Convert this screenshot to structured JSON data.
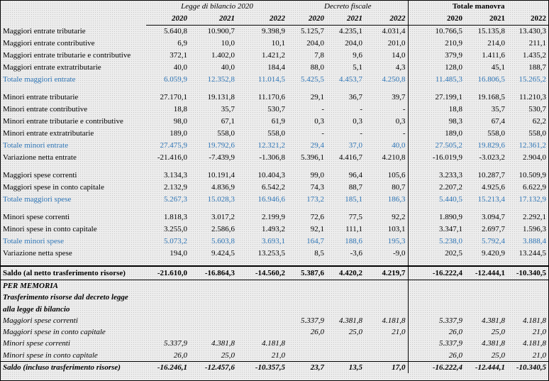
{
  "header": {
    "groups": [
      {
        "title": "Legge di bilancio 2020",
        "years": [
          2020,
          2021,
          2022
        ]
      },
      {
        "title": "Decreto fiscale",
        "years": [
          2020,
          2021,
          2022
        ]
      },
      {
        "title": "Totale manovra",
        "years": [
          2020,
          2021,
          2022
        ]
      }
    ]
  },
  "sections": [
    {
      "rows": [
        {
          "label": "Maggiori entrate tributarie",
          "values": [
            "5.640,8",
            "10.900,7",
            "9.398,9",
            "5.125,7",
            "4.235,1",
            "4.031,4",
            "10.766,5",
            "15.135,8",
            "13.430,3"
          ]
        },
        {
          "label": "Maggiori entrate contributive",
          "values": [
            "6,9",
            "10,0",
            "10,1",
            "204,0",
            "204,0",
            "201,0",
            "210,9",
            "214,0",
            "211,1"
          ]
        },
        {
          "label": "Maggiori entrate tributarie e contributive",
          "values": [
            "372,1",
            "1.402,0",
            "1.421,2",
            "7,8",
            "9,6",
            "14,0",
            "379,9",
            "1.411,6",
            "1.435,2"
          ]
        },
        {
          "label": "Maggiori entrate extratributarie",
          "values": [
            "40,0",
            "40,0",
            "184,4",
            "88,0",
            "5,1",
            "4,3",
            "128,0",
            "45,1",
            "188,7"
          ]
        },
        {
          "label": "Totale maggiori entrate",
          "color": "#2e75b6",
          "values": [
            "6.059,9",
            "12.352,8",
            "11.014,5",
            "5.425,5",
            "4.453,7",
            "4.250,8",
            "11.485,3",
            "16.806,5",
            "15.265,2"
          ]
        }
      ]
    },
    {
      "rows": [
        {
          "label": "Minori entrate tributarie",
          "values": [
            "27.170,1",
            "19.131,8",
            "11.170,6",
            "29,1",
            "36,7",
            "39,7",
            "27.199,1",
            "19.168,5",
            "11.210,3"
          ]
        },
        {
          "label": "Minori entrate contributive",
          "values": [
            "18,8",
            "35,7",
            "530,7",
            "-",
            "-",
            "-",
            "18,8",
            "35,7",
            "530,7"
          ]
        },
        {
          "label": "Minori entrate tributarie e contributive",
          "values": [
            "98,0",
            "67,1",
            "61,9",
            "0,3",
            "0,3",
            "0,3",
            "98,3",
            "67,4",
            "62,2"
          ]
        },
        {
          "label": "Minori entrate extratributarie",
          "values": [
            "189,0",
            "558,0",
            "558,0",
            "-",
            "-",
            "-",
            "189,0",
            "558,0",
            "558,0"
          ]
        },
        {
          "label": "Totale minori entrate",
          "color": "#2e75b6",
          "values": [
            "27.475,9",
            "19.792,6",
            "12.321,2",
            "29,4",
            "37,0",
            "40,0",
            "27.505,2",
            "19.829,6",
            "12.361,2"
          ]
        },
        {
          "label": "Variazione netta entrate",
          "values": [
            "-21.416,0",
            "-7.439,9",
            "-1.306,8",
            "5.396,1",
            "4.416,7",
            "4.210,8",
            "-16.019,9",
            "-3.023,2",
            "2.904,0"
          ]
        }
      ]
    },
    {
      "rows": [
        {
          "label": "Maggiori spese correnti",
          "values": [
            "3.134,3",
            "10.191,4",
            "10.404,3",
            "99,0",
            "96,4",
            "105,6",
            "3.233,3",
            "10.287,7",
            "10.509,9"
          ]
        },
        {
          "label": "Maggiori spese in conto capitale",
          "values": [
            "2.132,9",
            "4.836,9",
            "6.542,2",
            "74,3",
            "88,7",
            "80,7",
            "2.207,2",
            "4.925,6",
            "6.622,9"
          ]
        },
        {
          "label": "Totale maggiori spese",
          "color": "#2e75b6",
          "values": [
            "5.267,3",
            "15.028,3",
            "16.946,6",
            "173,2",
            "185,1",
            "186,3",
            "5.440,5",
            "15.213,4",
            "17.132,9"
          ]
        }
      ]
    },
    {
      "rows": [
        {
          "label": "Minori spese correnti",
          "values": [
            "1.818,3",
            "3.017,2",
            "2.199,9",
            "72,6",
            "77,5",
            "92,2",
            "1.890,9",
            "3.094,7",
            "2.292,1"
          ]
        },
        {
          "label": "Minori spese in conto capitale",
          "values": [
            "3.255,0",
            "2.586,6",
            "1.493,2",
            "92,1",
            "111,1",
            "103,1",
            "3.347,1",
            "2.697,7",
            "1.596,3"
          ]
        },
        {
          "label": "Totale minori spese",
          "color": "#2e75b6",
          "values": [
            "5.073,2",
            "5.603,8",
            "3.693,1",
            "164,7",
            "188,6",
            "195,3",
            "5.238,0",
            "5.792,4",
            "3.888,4"
          ]
        },
        {
          "label": "Variazione netta spese",
          "values": [
            "194,0",
            "9.424,5",
            "13.253,5",
            "8,5",
            "-3,6",
            "-9,0",
            "202,5",
            "9.420,9",
            "13.244,5"
          ]
        }
      ]
    }
  ],
  "saldo": {
    "label": "Saldo (al netto trasferimento risorse)",
    "values": [
      "-21.610,0",
      "-16.864,3",
      "-14.560,2",
      "5.387,6",
      "4.420,2",
      "4.219,7",
      "-16.222,4",
      "-12.444,1",
      "-10.340,5"
    ]
  },
  "memoria": {
    "title": "PER MEMORIA",
    "subtitle": [
      "Trasferimento risorse dal decreto legge",
      "alla legge di bilancio"
    ],
    "rows": [
      {
        "label": "Maggiori spese correnti",
        "values": [
          null,
          null,
          null,
          "5.337,9",
          "4.381,8",
          "4.181,8",
          "5.337,9",
          "4.381,8",
          "4.181,8"
        ]
      },
      {
        "label": "Maggiori spese in conto capitale",
        "values": [
          null,
          null,
          null,
          "26,0",
          "25,0",
          "21,0",
          "26,0",
          "25,0",
          "21,0"
        ]
      },
      {
        "label": "Minori spese correnti",
        "values": [
          "5.337,9",
          "4.381,8",
          "4.181,8",
          null,
          null,
          null,
          "5.337,9",
          "4.381,8",
          "4.181,8"
        ]
      },
      {
        "label": "Minori spese in conto capitale",
        "values": [
          "26,0",
          "25,0",
          "21,0",
          null,
          null,
          null,
          "26,0",
          "25,0",
          "21,0"
        ]
      }
    ],
    "saldo": {
      "label": "Saldo (incluso trasferimento risorse)",
      "values": [
        "-16.246,1",
        "-12.457,6",
        "-10.357,5",
        "23,7",
        "13,5",
        "17,0",
        "-16.222,4",
        "-12.444,1",
        "-10.340,5"
      ]
    }
  }
}
